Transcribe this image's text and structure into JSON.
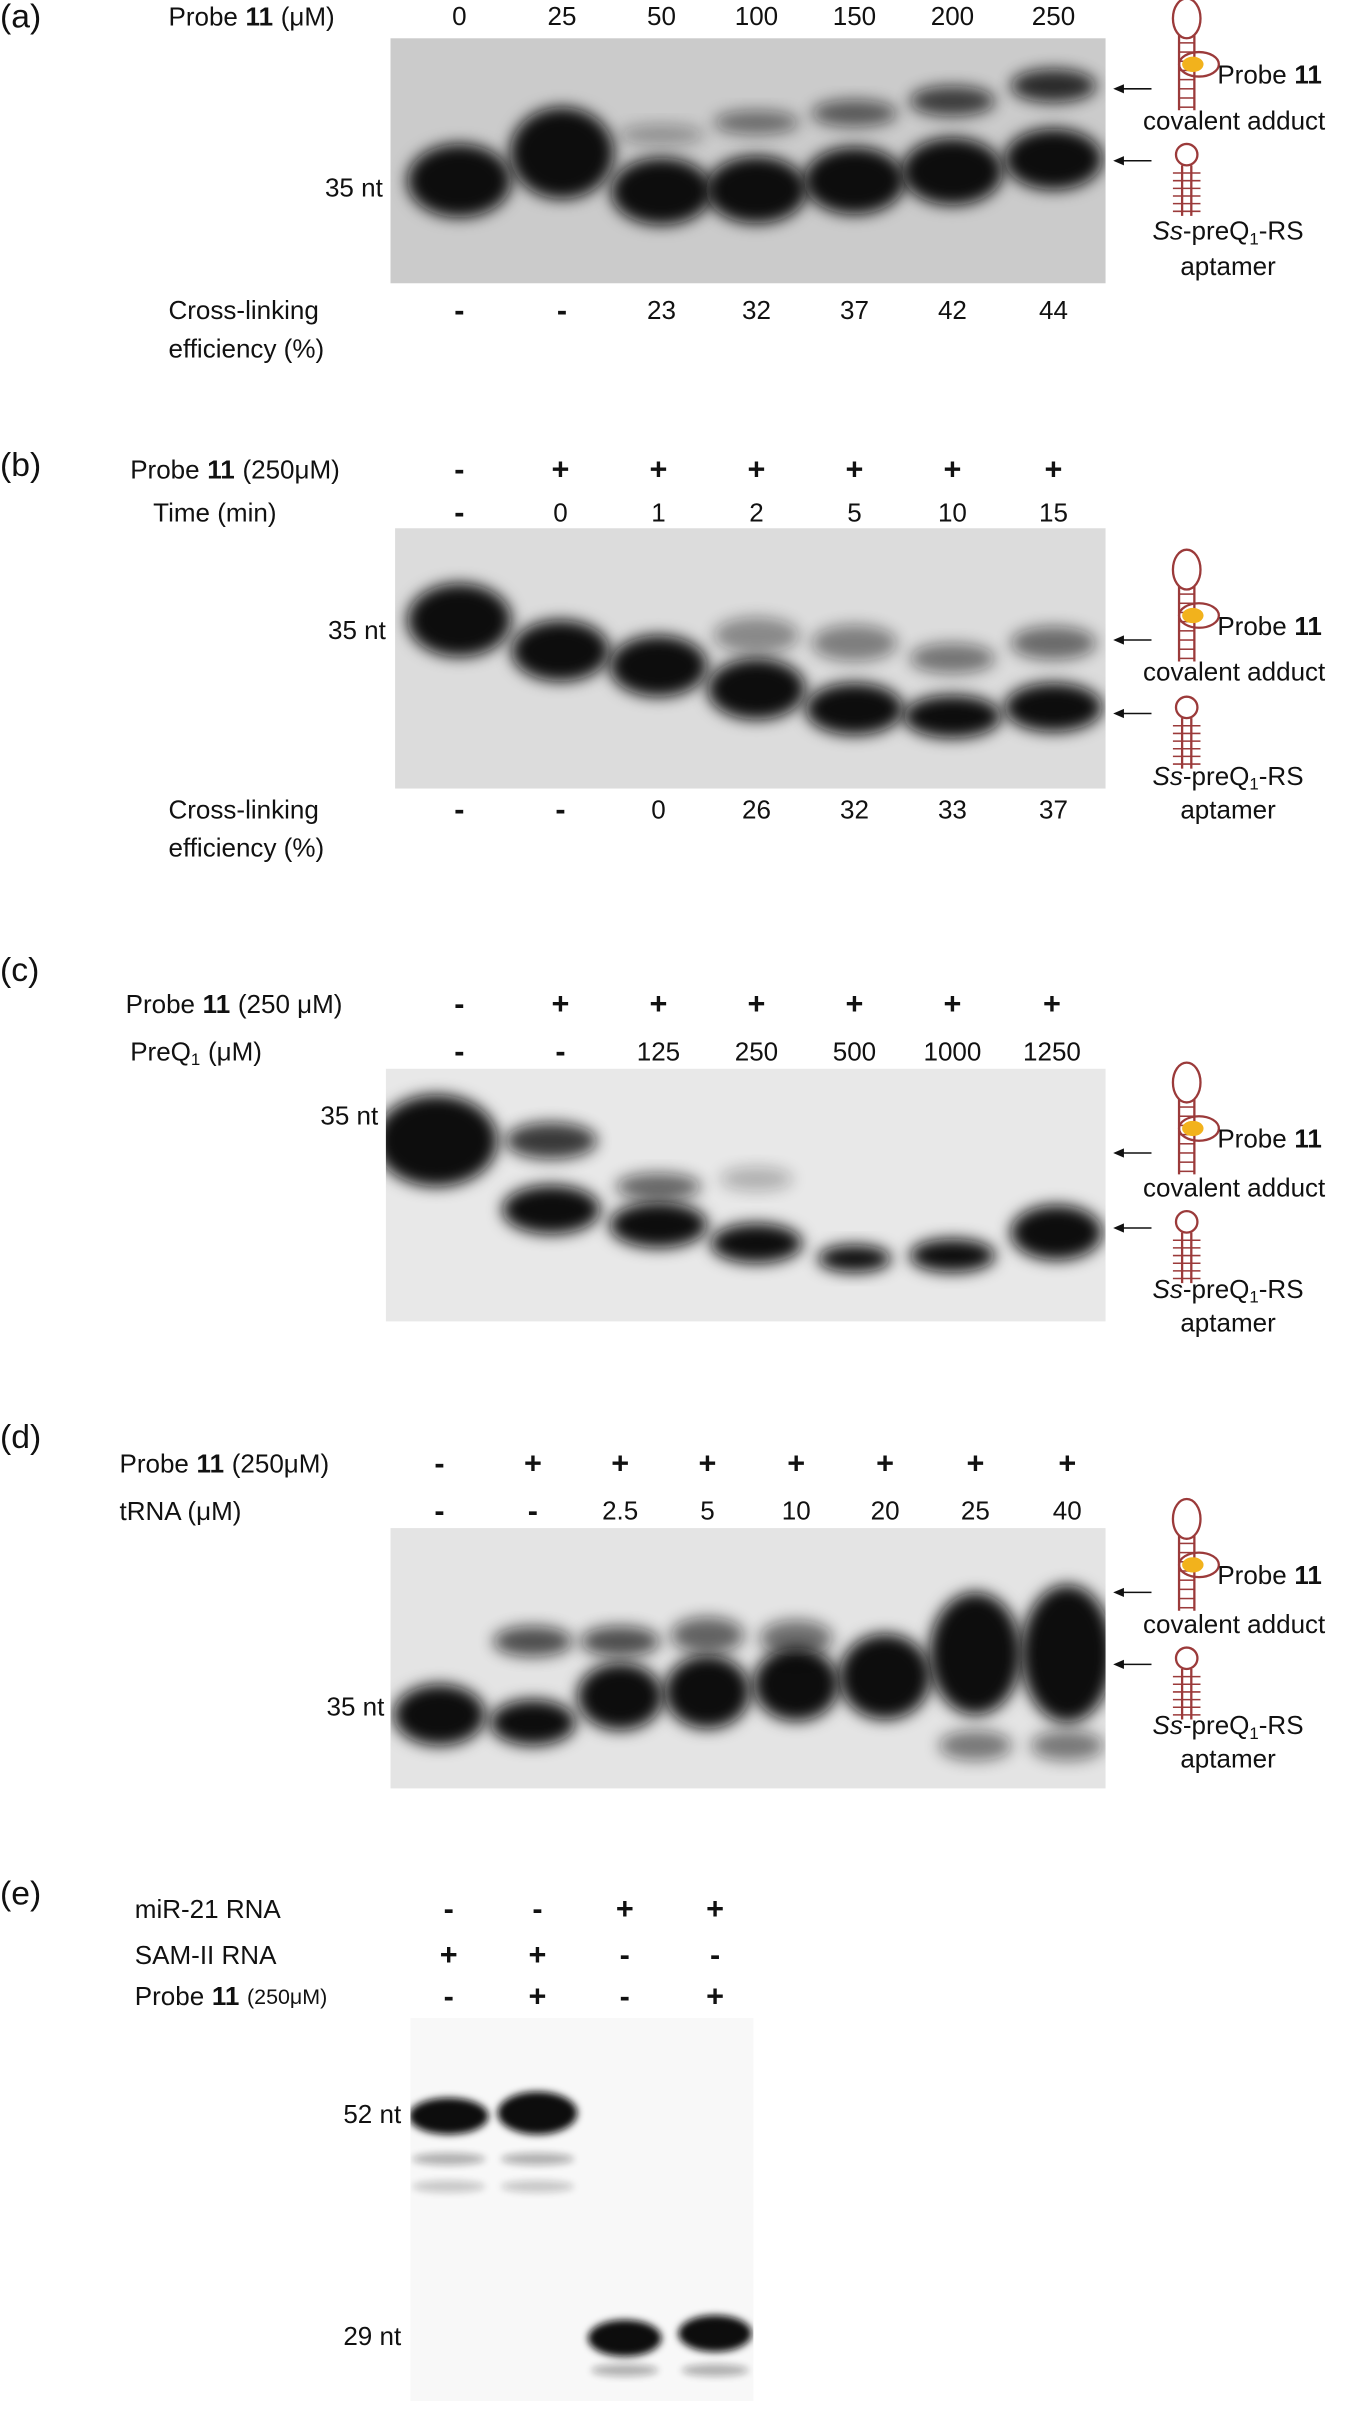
{
  "panels": [
    {
      "label": "(a)",
      "rows": [
        {
          "label": {
            "text": "Probe",
            "bold": "11",
            "unit": "(μM)"
          },
          "values": [
            0,
            25,
            50,
            100,
            150,
            200,
            250
          ]
        }
      ],
      "markers": [
        "35 nt"
      ],
      "efficiency": {
        "label": [
          "Cross-linking",
          "efficiency (%)"
        ],
        "values": [
          "-",
          "-",
          23,
          32,
          37,
          42,
          44
        ]
      },
      "adduct": {
        "label": {
          "text": "Probe",
          "bold": "11"
        },
        "caption": "covalent adduct"
      },
      "aptamer": {
        "label": {
          "italic": "Ss",
          "text": "-preQ",
          "sub": "1",
          "after": "-RS"
        },
        "caption": "aptamer"
      }
    },
    {
      "label": "(b)",
      "rows": [
        {
          "label": {
            "text": "Probe",
            "bold": "11",
            "unit": "(250μM)"
          },
          "values": [
            "-",
            "+",
            "+",
            "+",
            "+",
            "+",
            "+"
          ]
        },
        {
          "label": {
            "text": "Time (min)"
          },
          "values": [
            "-",
            0,
            1,
            2,
            5,
            10,
            15
          ]
        }
      ],
      "markers": [
        "35 nt"
      ],
      "efficiency": {
        "label": [
          "Cross-linking",
          "efficiency (%)"
        ],
        "values": [
          "-",
          "-",
          0,
          26,
          32,
          33,
          37
        ]
      },
      "adduct": {
        "label": {
          "text": "Probe",
          "bold": "11"
        },
        "caption": "covalent adduct"
      },
      "aptamer": {
        "label": {
          "italic": "Ss",
          "text": "-preQ",
          "sub": "1",
          "after": "-RS"
        },
        "caption": "aptamer"
      }
    },
    {
      "label": "(c)",
      "rows": [
        {
          "label": {
            "text": "Probe",
            "bold": "11",
            "unit": "(250 μM)"
          },
          "values": [
            "-",
            "+",
            "+",
            "+",
            "+",
            "+",
            "+"
          ]
        },
        {
          "label": {
            "text": "PreQ",
            "sub": "1",
            "unit": "(μM)"
          },
          "values": [
            "-",
            "-",
            125,
            250,
            500,
            1000,
            1250
          ]
        }
      ],
      "markers": [
        "35 nt"
      ],
      "adduct": {
        "label": {
          "text": "Probe",
          "bold": "11"
        },
        "caption": "covalent adduct"
      },
      "aptamer": {
        "label": {
          "italic": "Ss",
          "text": "-preQ",
          "sub": "1",
          "after": "-RS"
        },
        "caption": "aptamer"
      }
    },
    {
      "label": "(d)",
      "rows": [
        {
          "label": {
            "text": "Probe",
            "bold": "11",
            "unit": "(250μM)"
          },
          "values": [
            "-",
            "+",
            "+",
            "+",
            "+",
            "+",
            "+",
            "+"
          ]
        },
        {
          "label": {
            "text": "tRNA (μM)"
          },
          "values": [
            "-",
            "-",
            2.5,
            5,
            10,
            20,
            25,
            40
          ]
        }
      ],
      "markers": [
        "35 nt"
      ],
      "adduct": {
        "label": {
          "text": "Probe",
          "bold": "11"
        },
        "caption": "covalent adduct"
      },
      "aptamer": {
        "label": {
          "italic": "Ss",
          "text": "-preQ",
          "sub": "1",
          "after": "-RS"
        },
        "caption": "aptamer"
      }
    },
    {
      "label": "(e)",
      "rows": [
        {
          "label": {
            "text": "miR-21 RNA"
          },
          "values": [
            "-",
            "-",
            "+",
            "+"
          ]
        },
        {
          "label": {
            "text": "SAM-II RNA"
          },
          "values": [
            "+",
            "+",
            "-",
            "-"
          ]
        },
        {
          "label": {
            "text": "Probe",
            "bold": "11",
            "unit": "(250μM)"
          },
          "values": [
            "-",
            "+",
            "-",
            "+"
          ]
        }
      ],
      "markers": [
        "52 nt",
        "29 nt"
      ]
    }
  ]
}
